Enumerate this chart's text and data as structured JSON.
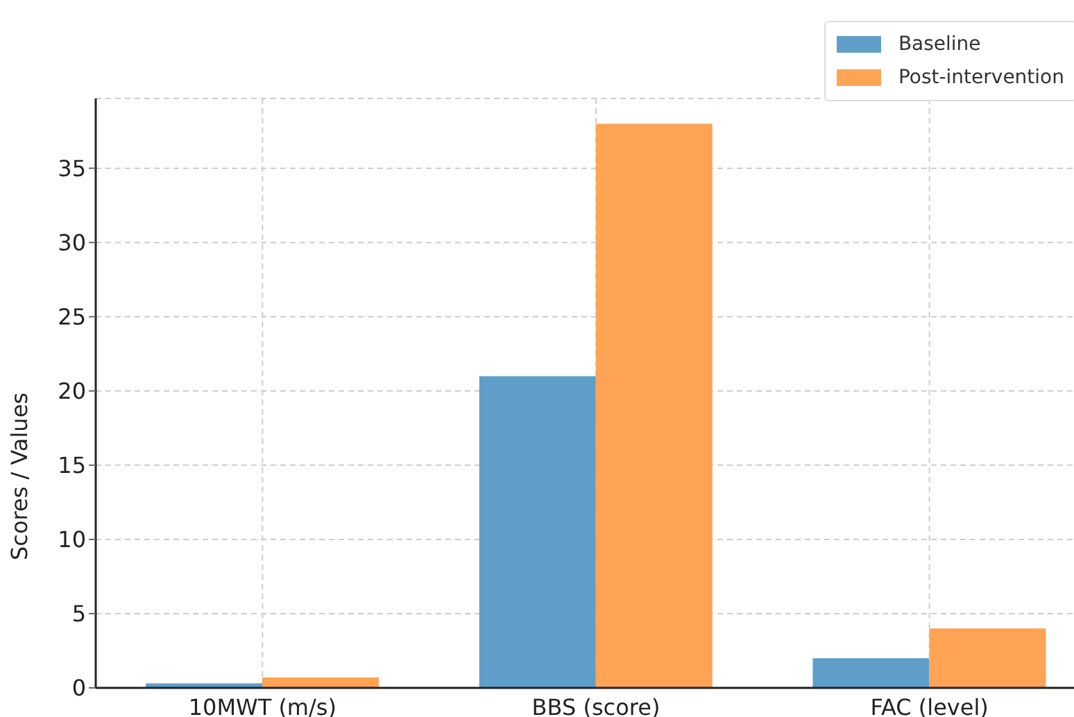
{
  "chart_data": {
    "type": "bar",
    "ylabel": "Scores / Values",
    "categories": [
      "10MWT (m/s)",
      "BBS (score)",
      "FAC (level)"
    ],
    "series": [
      {
        "name": "Baseline",
        "color": "#5f9ec9",
        "values": [
          0.3,
          21,
          2
        ]
      },
      {
        "name": "Post-intervention",
        "color": "#fea454",
        "values": [
          0.7,
          38,
          4
        ]
      }
    ],
    "ylim": [
      0,
      39.7
    ],
    "yticks": [
      0,
      5,
      10,
      15,
      20,
      25,
      30,
      35
    ],
    "grid": true,
    "legend": "top right"
  }
}
